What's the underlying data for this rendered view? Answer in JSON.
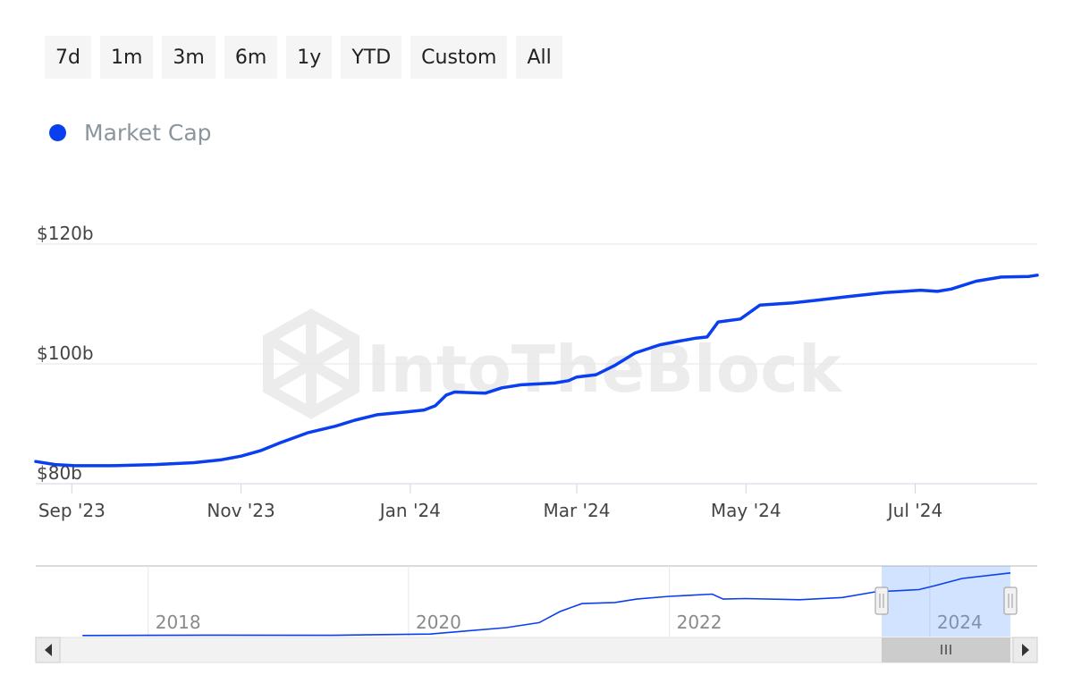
{
  "range_selector": {
    "buttons": [
      "7d",
      "1m",
      "3m",
      "6m",
      "1y",
      "YTD",
      "Custom",
      "All"
    ]
  },
  "legend": {
    "label": "Market Cap",
    "color": "#0a3ff0"
  },
  "watermark": {
    "text": "IntoTheBlock"
  },
  "chart_data": {
    "type": "line",
    "series": [
      {
        "name": "Market Cap",
        "color": "#0a3ff0",
        "points": [
          [
            "2023-08-19",
            83.7
          ],
          [
            "2023-08-26",
            83.2
          ],
          [
            "2023-09-02",
            83.0
          ],
          [
            "2023-09-15",
            83.0
          ],
          [
            "2023-10-01",
            83.2
          ],
          [
            "2023-10-15",
            83.5
          ],
          [
            "2023-10-25",
            84.0
          ],
          [
            "2023-11-01",
            84.6
          ],
          [
            "2023-11-08",
            85.5
          ],
          [
            "2023-11-15",
            86.8
          ],
          [
            "2023-11-25",
            88.5
          ],
          [
            "2023-12-05",
            89.6
          ],
          [
            "2023-12-12",
            90.6
          ],
          [
            "2023-12-20",
            91.5
          ],
          [
            "2023-12-31",
            92.0
          ],
          [
            "2024-01-06",
            92.3
          ],
          [
            "2024-01-10",
            93.0
          ],
          [
            "2024-01-14",
            94.8
          ],
          [
            "2024-01-17",
            95.3
          ],
          [
            "2024-01-28",
            95.1
          ],
          [
            "2024-02-03",
            96.0
          ],
          [
            "2024-02-10",
            96.5
          ],
          [
            "2024-02-22",
            96.8
          ],
          [
            "2024-02-27",
            97.2
          ],
          [
            "2024-03-01",
            97.8
          ],
          [
            "2024-03-08",
            98.2
          ],
          [
            "2024-03-15",
            99.8
          ],
          [
            "2024-03-22",
            101.8
          ],
          [
            "2024-03-31",
            103.2
          ],
          [
            "2024-04-07",
            103.8
          ],
          [
            "2024-04-13",
            104.3
          ],
          [
            "2024-04-17",
            104.5
          ],
          [
            "2024-04-21",
            107.0
          ],
          [
            "2024-04-29",
            107.5
          ],
          [
            "2024-05-06",
            109.8
          ],
          [
            "2024-05-18",
            110.2
          ],
          [
            "2024-05-26",
            110.6
          ],
          [
            "2024-06-06",
            111.2
          ],
          [
            "2024-06-20",
            111.9
          ],
          [
            "2024-07-03",
            112.3
          ],
          [
            "2024-07-09",
            112.1
          ],
          [
            "2024-07-14",
            112.5
          ],
          [
            "2024-07-23",
            113.8
          ],
          [
            "2024-08-01",
            114.5
          ],
          [
            "2024-08-11",
            114.6
          ],
          [
            "2024-08-14",
            114.8
          ]
        ]
      }
    ],
    "x_ticks": [
      "Sep '23",
      "Nov '23",
      "Jan '24",
      "Mar '24",
      "May '24",
      "Jul '24"
    ],
    "x_tick_dates": [
      "2023-09-01",
      "2023-11-01",
      "2024-01-01",
      "2024-03-01",
      "2024-05-01",
      "2024-07-01"
    ],
    "y_ticks": [
      "$80b",
      "$100b",
      "$120b"
    ],
    "y_tick_values": [
      80,
      100,
      120
    ],
    "xlim": [
      "2023-08-19",
      "2024-08-14"
    ],
    "ylim": [
      80,
      120
    ],
    "grid": true,
    "navigator": {
      "labels": [
        "2018",
        "2020",
        "2022",
        "2024"
      ],
      "label_dates": [
        "2018-01-01",
        "2020-01-01",
        "2022-01-01",
        "2024-01-01"
      ],
      "xlim": [
        "2017-05-01",
        "2024-08-14"
      ],
      "ylim": [
        0,
        120
      ],
      "selected_range": [
        "2023-08-19",
        "2024-08-14"
      ],
      "points": [
        [
          "2017-07-01",
          2
        ],
        [
          "2018-06-01",
          2.5
        ],
        [
          "2019-06-01",
          2.2
        ],
        [
          "2019-09-01",
          3
        ],
        [
          "2020-03-01",
          4.5
        ],
        [
          "2020-06-01",
          9.5
        ],
        [
          "2020-10-01",
          16
        ],
        [
          "2021-01-01",
          25
        ],
        [
          "2021-03-01",
          45
        ],
        [
          "2021-05-01",
          59
        ],
        [
          "2021-08-01",
          61
        ],
        [
          "2021-10-01",
          67
        ],
        [
          "2022-01-01",
          72
        ],
        [
          "2022-03-01",
          74
        ],
        [
          "2022-05-01",
          76
        ],
        [
          "2022-06-01",
          67
        ],
        [
          "2022-08-01",
          68
        ],
        [
          "2023-01-01",
          66
        ],
        [
          "2023-05-01",
          70
        ],
        [
          "2023-08-01",
          80
        ],
        [
          "2023-12-01",
          84
        ],
        [
          "2024-01-15",
          91
        ],
        [
          "2024-04-01",
          104
        ],
        [
          "2024-08-14",
          114
        ]
      ]
    }
  }
}
